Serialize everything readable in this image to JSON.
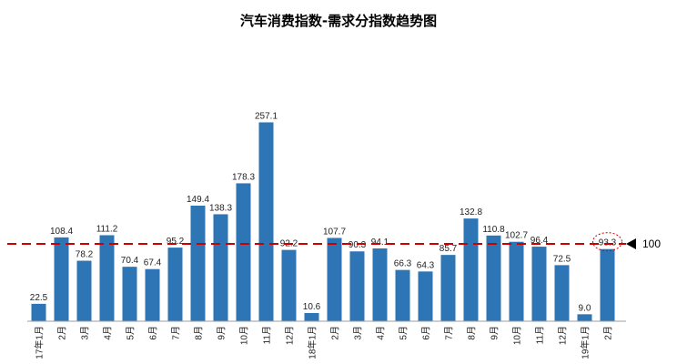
{
  "chart_data": {
    "type": "bar",
    "title": "汽车消费指数-需求分指数趋势图",
    "categories": [
      "17年1月",
      "2月",
      "3月",
      "4月",
      "5月",
      "6月",
      "7月",
      "8月",
      "9月",
      "10月",
      "11月",
      "12月",
      "18年1月",
      "2月",
      "3月",
      "4月",
      "5月",
      "6月",
      "7月",
      "8月",
      "9月",
      "10月",
      "11月",
      "12月",
      "19年1月",
      "2月"
    ],
    "values": [
      22.5,
      108.4,
      78.2,
      111.2,
      70.4,
      67.4,
      95.2,
      149.4,
      138.3,
      178.3,
      257.1,
      92.2,
      10.6,
      107.7,
      90.3,
      94.1,
      66.3,
      64.3,
      85.7,
      132.8,
      110.8,
      102.7,
      96.4,
      72.5,
      9.0,
      93.3
    ],
    "value_labels": [
      "22.5",
      "108.4",
      "78.2",
      "111.2",
      "70.4",
      "67.4",
      "95.2",
      "149.4",
      "138.3",
      "178.3",
      "257.1",
      "92.2",
      "10.6",
      "107.7",
      "90.3",
      "94.1",
      "66.3",
      "64.3",
      "85.7",
      "132.8",
      "110.8",
      "102.7",
      "96.4",
      "72.5",
      "9.0",
      "93.3"
    ],
    "reference_line": {
      "value": 100,
      "label": "100",
      "color": "#cc0000",
      "style": "dashed"
    },
    "highlighted_index": 25,
    "bar_color": "#2e75b6",
    "ylim": [
      0,
      260
    ],
    "grid": false,
    "legend": "none"
  }
}
